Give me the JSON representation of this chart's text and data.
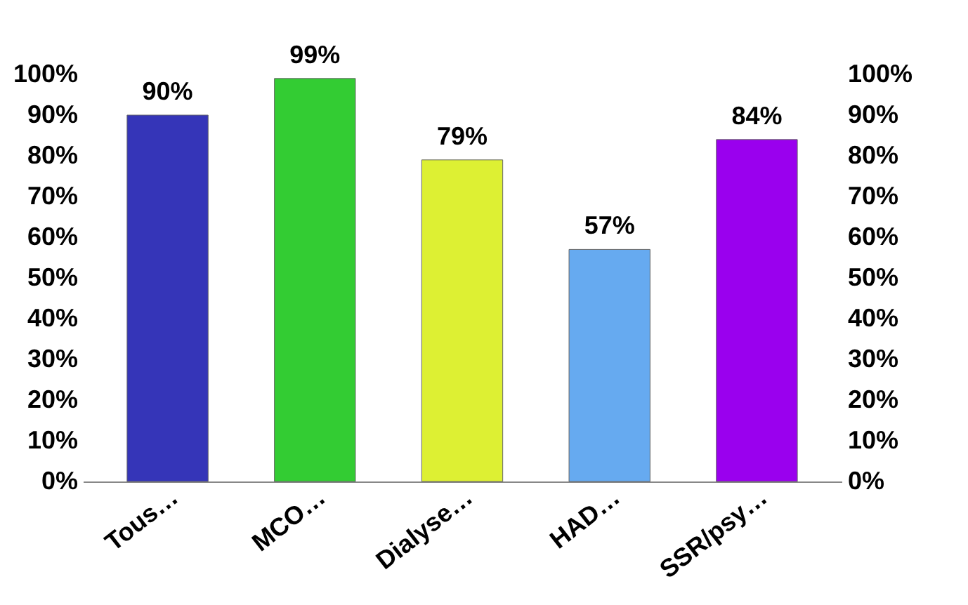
{
  "chart_data": {
    "type": "bar",
    "categories": [
      "Tous…",
      "MCO…",
      "Dialyse…",
      "HAD…",
      "SSR/psy…"
    ],
    "values": [
      90,
      99,
      79,
      57,
      84
    ],
    "colors": [
      "#3535b8",
      "#33cc33",
      "#ddf033",
      "#66aaf0",
      "#9a00ee"
    ],
    "value_labels": [
      "90%",
      "99%",
      "79%",
      "57%",
      "84%"
    ],
    "ylim": [
      0,
      100
    ],
    "yticks": [
      {
        "value": 0,
        "label": "0%"
      },
      {
        "value": 10,
        "label": "10%"
      },
      {
        "value": 20,
        "label": "20%"
      },
      {
        "value": 30,
        "label": "30%"
      },
      {
        "value": 40,
        "label": "40%"
      },
      {
        "value": 50,
        "label": "50%"
      },
      {
        "value": 60,
        "label": "60%"
      },
      {
        "value": 70,
        "label": "70%"
      },
      {
        "value": 80,
        "label": "80%"
      },
      {
        "value": 90,
        "label": "90%"
      },
      {
        "value": 100,
        "label": "100%"
      }
    ],
    "y2lim": [
      0,
      100
    ],
    "y2ticks": [
      {
        "value": 0,
        "label": "0%"
      },
      {
        "value": 10,
        "label": "10%"
      },
      {
        "value": 20,
        "label": "20%"
      },
      {
        "value": 30,
        "label": "30%"
      },
      {
        "value": 40,
        "label": "40%"
      },
      {
        "value": 50,
        "label": "50%"
      },
      {
        "value": 60,
        "label": "60%"
      },
      {
        "value": 70,
        "label": "70%"
      },
      {
        "value": 80,
        "label": "80%"
      },
      {
        "value": 90,
        "label": "90%"
      },
      {
        "value": 100,
        "label": "100%"
      }
    ],
    "grid": false
  }
}
